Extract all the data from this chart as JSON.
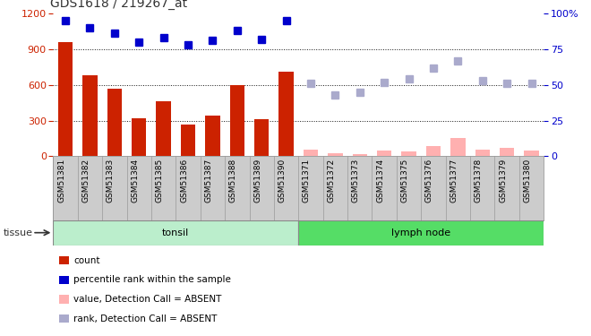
{
  "title": "GDS1618 / 219267_at",
  "samples": [
    "GSM51381",
    "GSM51382",
    "GSM51383",
    "GSM51384",
    "GSM51385",
    "GSM51386",
    "GSM51387",
    "GSM51388",
    "GSM51389",
    "GSM51390",
    "GSM51371",
    "GSM51372",
    "GSM51373",
    "GSM51374",
    "GSM51375",
    "GSM51376",
    "GSM51377",
    "GSM51378",
    "GSM51379",
    "GSM51380"
  ],
  "bar_values": [
    960,
    680,
    570,
    320,
    460,
    265,
    340,
    600,
    315,
    710,
    0,
    0,
    0,
    0,
    0,
    0,
    0,
    0,
    0,
    0
  ],
  "bar_absent_values": [
    0,
    0,
    0,
    0,
    0,
    0,
    0,
    0,
    0,
    0,
    55,
    28,
    18,
    50,
    38,
    88,
    155,
    52,
    72,
    48
  ],
  "rank_present": [
    95,
    90,
    86,
    80,
    83,
    78,
    81,
    88,
    82,
    95,
    null,
    null,
    null,
    null,
    null,
    null,
    null,
    null,
    null,
    null
  ],
  "rank_absent": [
    null,
    null,
    null,
    null,
    null,
    null,
    null,
    null,
    null,
    null,
    51,
    43,
    45,
    52,
    54,
    62,
    67,
    53,
    51,
    51
  ],
  "is_present": [
    true,
    true,
    true,
    true,
    true,
    true,
    true,
    true,
    true,
    true,
    false,
    false,
    false,
    false,
    false,
    false,
    false,
    false,
    false,
    false
  ],
  "tonsil_count": 10,
  "lymph_count": 10,
  "ylim_left": [
    0,
    1200
  ],
  "ylim_right": [
    0,
    100
  ],
  "yticks_left": [
    0,
    300,
    600,
    900,
    1200
  ],
  "yticks_right": [
    0,
    25,
    50,
    75,
    100
  ],
  "bar_color": "#cc2200",
  "bar_absent_color": "#ffb0b0",
  "rank_present_color": "#0000cc",
  "rank_absent_color": "#aaaacc",
  "tonsil_color": "#bbeecc",
  "lymph_color": "#55dd66",
  "grid_color": "#111111",
  "xticklabel_bg": "#cccccc",
  "left_axis_color": "#cc2200",
  "right_axis_color": "#0000cc",
  "title_color": "#333333",
  "legend_items": [
    {
      "color": "#cc2200",
      "label": "count"
    },
    {
      "color": "#0000cc",
      "label": "percentile rank within the sample"
    },
    {
      "color": "#ffb0b0",
      "label": "value, Detection Call = ABSENT"
    },
    {
      "color": "#aaaacc",
      "label": "rank, Detection Call = ABSENT"
    }
  ]
}
